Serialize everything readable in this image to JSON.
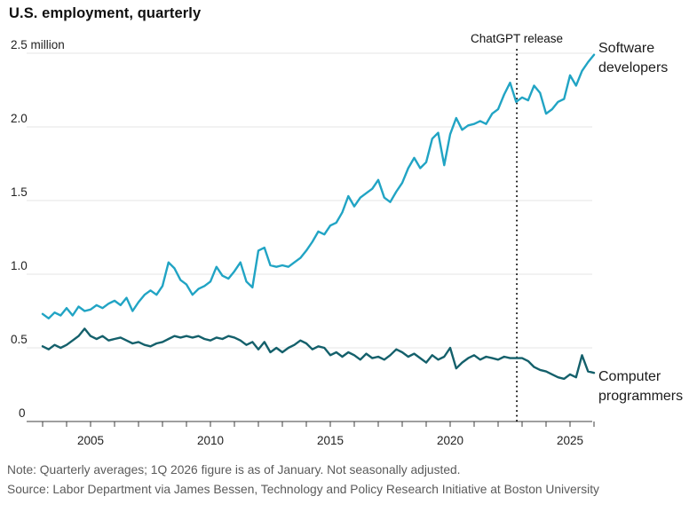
{
  "title": "U.S. employment, quarterly",
  "footer": {
    "note": "Note: Quarterly averages; 1Q 2026 figure is as of January. Not seasonally adjusted.",
    "source": "Source: Labor Department via James Bessen, Technology and Policy Research Initiative at Boston University"
  },
  "colors": {
    "developers_line": "#21a4c4",
    "programmers_line": "#14606b",
    "gridline": "#e4e4e4",
    "axis": "#3f3f3f",
    "annotation_line": "#111111",
    "tick_label": "#222222",
    "footer_text": "#5a5a5a"
  },
  "chart_data": {
    "type": "line",
    "title": "U.S. employment, quarterly",
    "unit": "million",
    "x_start_year": 2003,
    "x_step_years": 0.25,
    "x_range_label": "2003 Q1 - 2026 Q1",
    "ylim": [
      0,
      2.5
    ],
    "y_ticks": [
      0,
      0.5,
      1.0,
      1.5,
      2.0,
      2.5
    ],
    "y_top_tick_label": "2.5 million",
    "x_tick_years_labeled": [
      2005,
      2010,
      2015,
      2020,
      2025
    ],
    "x_minor_tick_every_years": 1,
    "grid": "horizontal",
    "legend_position": "right-of-line-ends",
    "annotation": {
      "label": "ChatGPT release",
      "x_year": 2022.78,
      "style": "dotted-vertical-line"
    },
    "series": [
      {
        "name": "Software developers",
        "color": "#21a4c4",
        "values": [
          0.73,
          0.7,
          0.74,
          0.72,
          0.77,
          0.72,
          0.78,
          0.75,
          0.76,
          0.79,
          0.77,
          0.8,
          0.82,
          0.79,
          0.84,
          0.75,
          0.81,
          0.86,
          0.89,
          0.86,
          0.92,
          1.08,
          1.04,
          0.96,
          0.93,
          0.86,
          0.9,
          0.92,
          0.95,
          1.05,
          0.99,
          0.97,
          1.02,
          1.08,
          0.95,
          0.91,
          1.16,
          1.18,
          1.06,
          1.05,
          1.06,
          1.05,
          1.08,
          1.11,
          1.16,
          1.22,
          1.29,
          1.27,
          1.33,
          1.35,
          1.42,
          1.53,
          1.46,
          1.52,
          1.55,
          1.58,
          1.64,
          1.52,
          1.49,
          1.56,
          1.62,
          1.72,
          1.79,
          1.72,
          1.76,
          1.92,
          1.96,
          1.74,
          1.95,
          2.06,
          1.98,
          2.01,
          2.02,
          2.04,
          2.02,
          2.09,
          2.12,
          2.22,
          2.3,
          2.17,
          2.2,
          2.18,
          2.28,
          2.23,
          2.09,
          2.12,
          2.17,
          2.19,
          2.35,
          2.28,
          2.38,
          2.44,
          2.49
        ]
      },
      {
        "name": "Computer programmers",
        "color": "#14606b",
        "values": [
          0.51,
          0.49,
          0.52,
          0.5,
          0.52,
          0.55,
          0.58,
          0.63,
          0.58,
          0.56,
          0.58,
          0.55,
          0.56,
          0.57,
          0.55,
          0.53,
          0.54,
          0.52,
          0.51,
          0.53,
          0.54,
          0.56,
          0.58,
          0.57,
          0.58,
          0.57,
          0.58,
          0.56,
          0.55,
          0.57,
          0.56,
          0.58,
          0.57,
          0.55,
          0.52,
          0.54,
          0.49,
          0.54,
          0.47,
          0.5,
          0.47,
          0.5,
          0.52,
          0.55,
          0.53,
          0.49,
          0.51,
          0.5,
          0.45,
          0.47,
          0.44,
          0.47,
          0.45,
          0.42,
          0.46,
          0.43,
          0.44,
          0.42,
          0.45,
          0.49,
          0.47,
          0.44,
          0.46,
          0.43,
          0.4,
          0.45,
          0.42,
          0.44,
          0.5,
          0.36,
          0.4,
          0.43,
          0.45,
          0.42,
          0.44,
          0.43,
          0.42,
          0.44,
          0.43,
          0.43,
          0.43,
          0.41,
          0.37,
          0.35,
          0.34,
          0.32,
          0.3,
          0.29,
          0.32,
          0.3,
          0.45,
          0.34,
          0.33
        ]
      }
    ]
  }
}
